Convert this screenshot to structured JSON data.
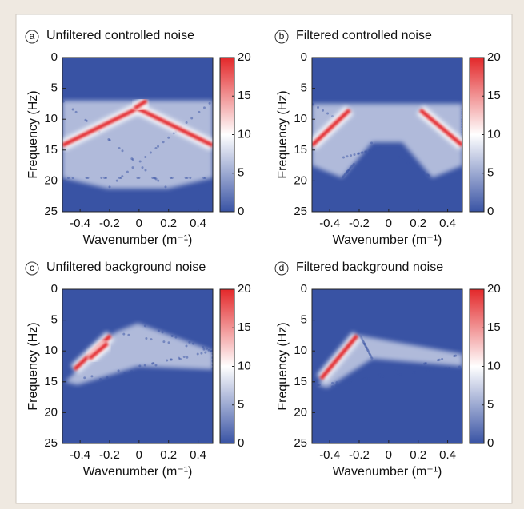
{
  "chart_data": [
    {
      "type": "heatmap",
      "panel_label": "a",
      "title": "Unfiltered controlled noise",
      "xlabel": "Wavenumber (m⁻¹)",
      "ylabel": "Frequency (Hz)",
      "xlim": [
        -0.52,
        0.5
      ],
      "xticks": [
        -0.4,
        -0.2,
        0,
        0.2,
        0.4
      ],
      "ylim": [
        0,
        25
      ],
      "yticks": [
        0,
        5,
        10,
        15,
        20,
        25
      ],
      "y_inverted": true,
      "clim": [
        0,
        20
      ],
      "cticks": [
        0,
        5,
        10,
        15,
        20
      ],
      "colormap": [
        "#3953a4",
        "#ffffff",
        "#e3282a"
      ]
    },
    {
      "type": "heatmap",
      "panel_label": "b",
      "title": "Filtered controlled noise",
      "xlabel": "Wavenumber (m⁻¹)",
      "ylabel": "Frequency (Hz)",
      "xlim": [
        -0.52,
        0.5
      ],
      "xticks": [
        -0.4,
        -0.2,
        0,
        0.2,
        0.4
      ],
      "ylim": [
        0,
        25
      ],
      "yticks": [
        0,
        5,
        10,
        15,
        20,
        25
      ],
      "y_inverted": true,
      "clim": [
        0,
        20
      ],
      "cticks": [
        0,
        5,
        10,
        15,
        20
      ],
      "colormap": [
        "#3953a4",
        "#ffffff",
        "#e3282a"
      ]
    },
    {
      "type": "heatmap",
      "panel_label": "c",
      "title": "Unfiltered background noise",
      "xlabel": "Wavenumber (m⁻¹)",
      "ylabel": "Frequency (Hz)",
      "xlim": [
        -0.52,
        0.5
      ],
      "xticks": [
        -0.4,
        -0.2,
        0,
        0.2,
        0.4
      ],
      "ylim": [
        0,
        25
      ],
      "yticks": [
        0,
        5,
        10,
        15,
        20,
        25
      ],
      "y_inverted": true,
      "clim": [
        0,
        20
      ],
      "cticks": [
        0,
        5,
        10,
        15,
        20
      ],
      "colormap": [
        "#3953a4",
        "#ffffff",
        "#e3282a"
      ]
    },
    {
      "type": "heatmap",
      "panel_label": "d",
      "title": "Filtered background noise",
      "xlabel": "Wavenumber (m⁻¹)",
      "ylabel": "Frequency (Hz)",
      "xlim": [
        -0.52,
        0.5
      ],
      "xticks": [
        -0.4,
        -0.2,
        0,
        0.2,
        0.4
      ],
      "ylim": [
        0,
        25
      ],
      "yticks": [
        0,
        5,
        10,
        15,
        20,
        25
      ],
      "y_inverted": true,
      "clim": [
        0,
        20
      ],
      "cticks": [
        0,
        5,
        10,
        15,
        20
      ],
      "colormap": [
        "#3953a4",
        "#ffffff",
        "#e3282a"
      ]
    }
  ]
}
